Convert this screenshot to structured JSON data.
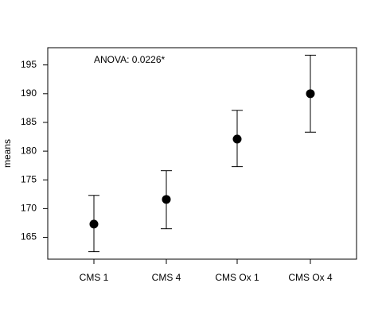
{
  "chart_data": {
    "type": "scatter",
    "subtype": "means-with-error-bars",
    "title": "",
    "annotation": "ANOVA: 0.0226*",
    "xlabel": "",
    "ylabel": "means",
    "categories": [
      "CMS 1",
      "CMS 4",
      "CMS Ox 1",
      "CMS Ox 4"
    ],
    "means": [
      167.3,
      171.6,
      182.1,
      190.0
    ],
    "lower": [
      162.5,
      166.5,
      177.3,
      183.3
    ],
    "upper": [
      172.3,
      176.6,
      187.1,
      196.7
    ],
    "ylim": [
      161.2,
      198.0
    ],
    "yticks": [
      165,
      170,
      175,
      180,
      185,
      190,
      195
    ],
    "ytick_labels": [
      "165",
      "170",
      "175",
      "180",
      "185",
      "190",
      "195"
    ],
    "grid": false,
    "legend": "none"
  }
}
